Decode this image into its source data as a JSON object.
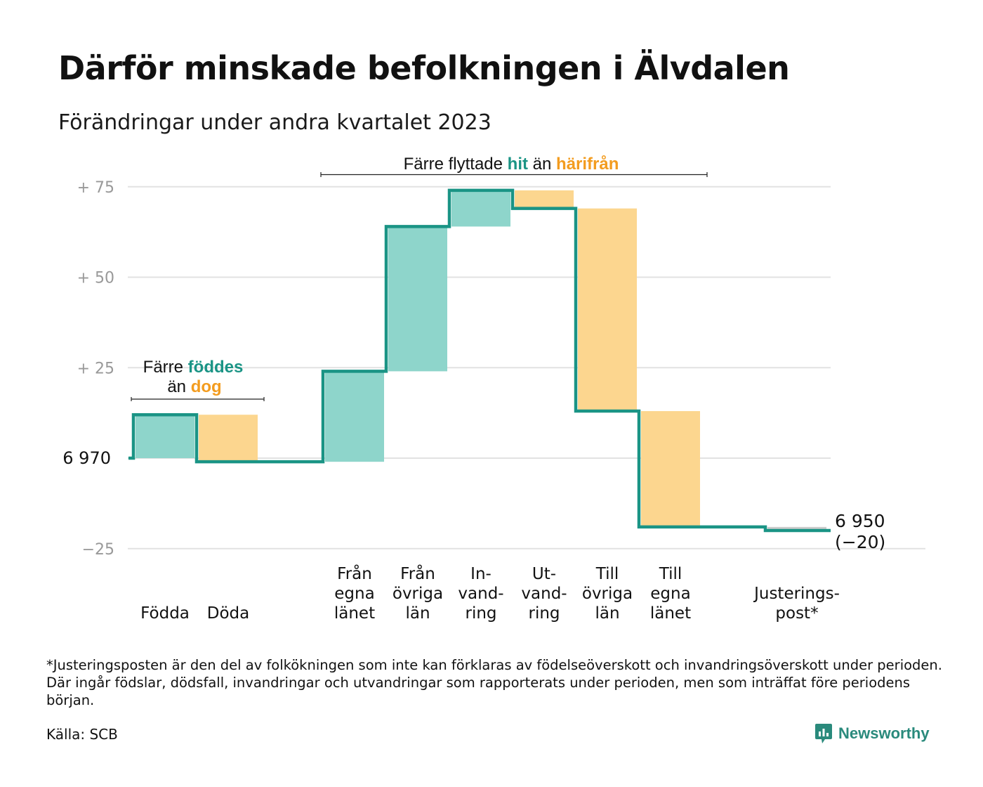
{
  "title": "Därför minskade befolkningen i Älvdalen",
  "subtitle": "Förändringar under andra kvartalet 2023",
  "footnote": "*Justeringsposten är den del av folkökningen som inte kan förklaras av födelseöverskott och invandringsöverskott under perioden. Där ingår födslar, dödsfall, invandringar och utvandringar som rapporterats under perioden, men som inträffat före periodens början.",
  "source": "Källa: SCB",
  "brand": "Newsworthy",
  "colors": {
    "teal": "#1a9485",
    "teal_fill": "#8ed5cb",
    "orange_fill": "#fcd68f",
    "orange_text": "#f39c1f",
    "grid": "#e2e2e2",
    "tick": "#999999"
  },
  "chart_data": {
    "type": "waterfall",
    "start_value": 6970,
    "start_label": "6  970",
    "end_value": 6950,
    "end_label_value": "6 950",
    "end_label_change": "(−20)",
    "y_ticks": [
      {
        "value": 75,
        "label": "+  75"
      },
      {
        "value": 50,
        "label": "+  50"
      },
      {
        "value": 25,
        "label": "+  25"
      },
      {
        "value": -25,
        "label": "−25"
      }
    ],
    "ylim": [
      -25,
      75
    ],
    "steps": [
      {
        "category": [
          "Födda"
        ],
        "change": 12,
        "kind": "in"
      },
      {
        "category": [
          "Döda"
        ],
        "change": -13,
        "kind": "out"
      },
      {
        "category": [],
        "change": 0,
        "kind": "none"
      },
      {
        "category": [
          "Från",
          "egna",
          "länet"
        ],
        "change": 25,
        "kind": "in"
      },
      {
        "category": [
          "Från",
          "övriga",
          "län"
        ],
        "change": 40,
        "kind": "in"
      },
      {
        "category": [
          "In-",
          "vand-",
          "ring"
        ],
        "change": 10,
        "kind": "in"
      },
      {
        "category": [
          "Ut-",
          "vand-",
          "ring"
        ],
        "change": -5,
        "kind": "out"
      },
      {
        "category": [
          "Till",
          "övriga",
          "län"
        ],
        "change": -56,
        "kind": "out"
      },
      {
        "category": [
          "Till",
          "egna",
          "länet"
        ],
        "change": -32,
        "kind": "out"
      },
      {
        "category": [],
        "change": 0,
        "kind": "none"
      },
      {
        "category": [
          "Justerings-",
          "post*"
        ],
        "change": -1,
        "kind": "adjust"
      }
    ],
    "annotations": [
      {
        "parts": [
          {
            "text": "Färre ",
            "style": "plain"
          },
          {
            "text": "föddes",
            "style": "teal"
          }
        ],
        "line2": [
          {
            "text": "än ",
            "style": "plain"
          },
          {
            "text": "dog",
            "style": "orange"
          }
        ]
      },
      {
        "parts": [
          {
            "text": "Färre flyttade ",
            "style": "plain"
          },
          {
            "text": "hit",
            "style": "teal"
          },
          {
            "text": "  än ",
            "style": "plain"
          },
          {
            "text": "härifrån",
            "style": "orange"
          }
        ]
      }
    ]
  }
}
